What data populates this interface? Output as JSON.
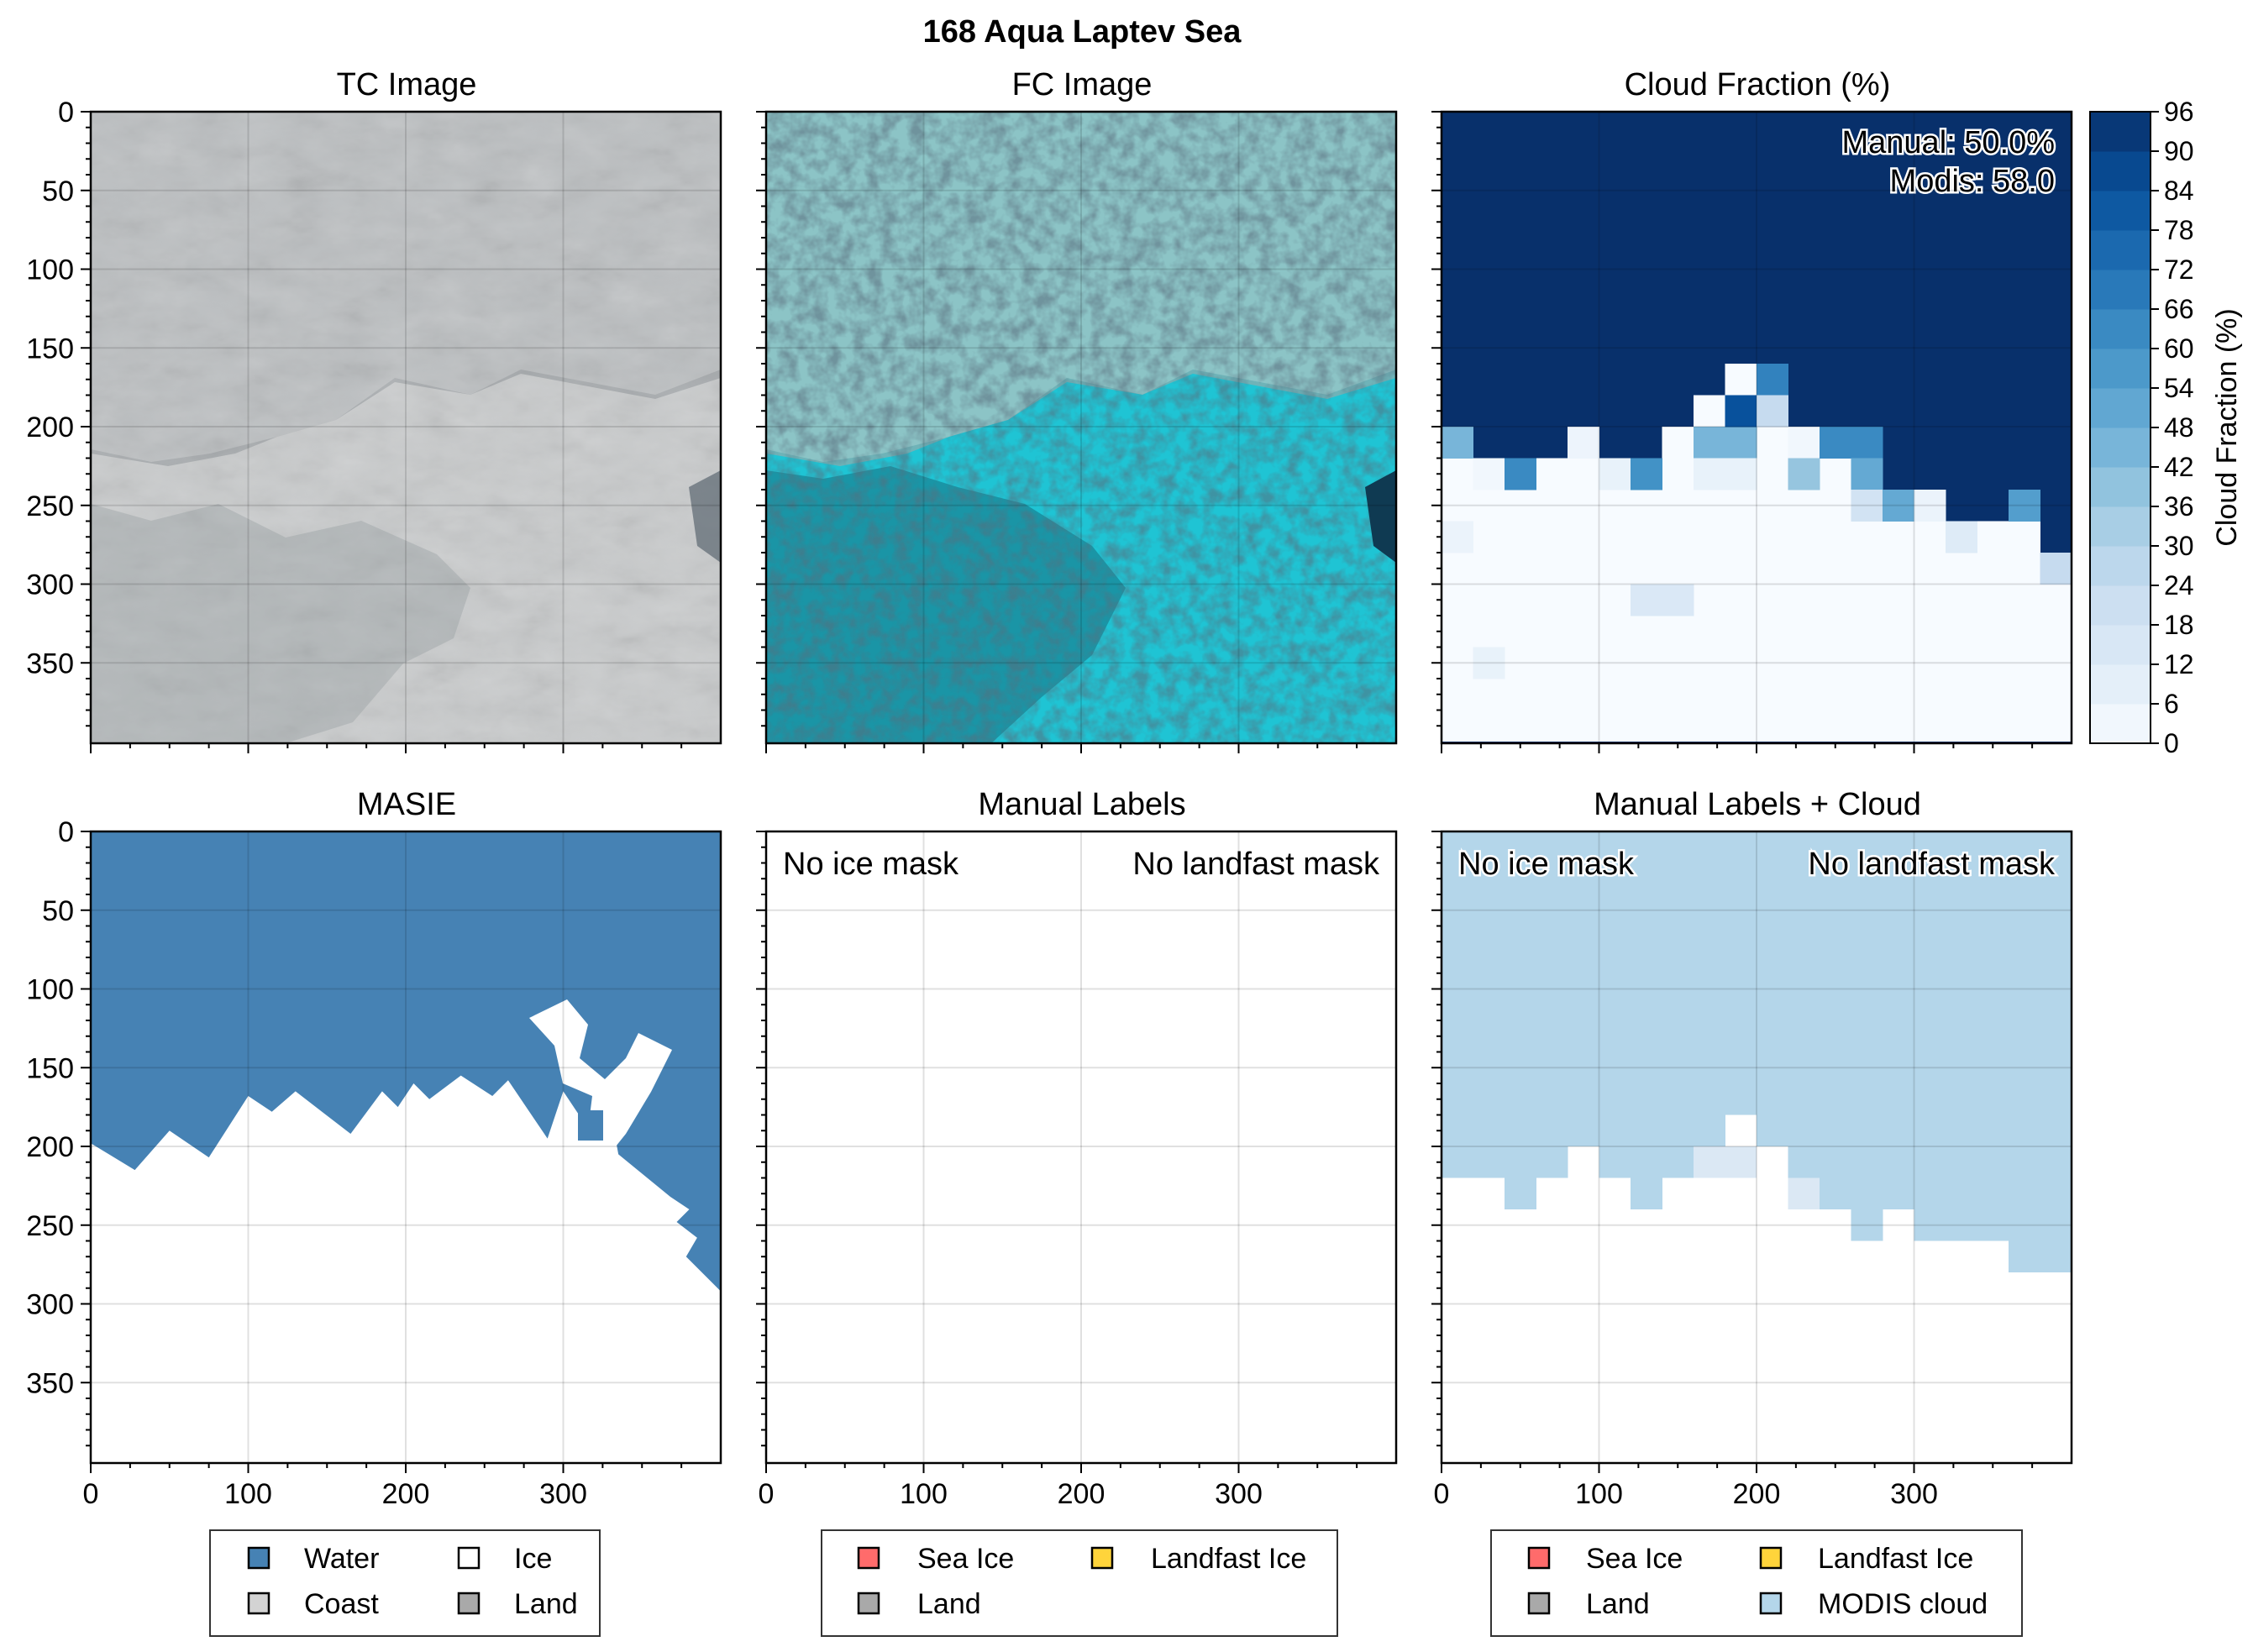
{
  "suptitle": "168 Aqua Laptev Sea",
  "colors": {
    "water": "#4682b4",
    "ice": "#ffffff",
    "coast": "#d3d3d3",
    "land": "#a9a9a9",
    "sea_ice": "#ff6b6b",
    "landfast_ice": "#ffd43b",
    "modis_cloud": "#b4d6ea"
  },
  "panels": {
    "tc": {
      "title": "TC Image"
    },
    "fc": {
      "title": "FC Image"
    },
    "cf": {
      "title": "Cloud Fraction (%)",
      "manual": "Manual: 50.0%",
      "modis": "Modis: 58.0"
    },
    "masie": {
      "title": "MASIE"
    },
    "ml": {
      "title": "Manual Labels",
      "note_left": "No ice mask",
      "note_right": "No landfast mask"
    },
    "mlc": {
      "title": "Manual Labels + Cloud",
      "note_left": "No ice mask",
      "note_right": "No landfast mask"
    }
  },
  "legends": {
    "masie": [
      "Water",
      "Ice",
      "Coast",
      "Land"
    ],
    "ml": [
      "Sea Ice",
      "Landfast Ice",
      "Land"
    ],
    "mlc": [
      "Sea Ice",
      "Landfast Ice",
      "Land",
      "MODIS cloud"
    ]
  },
  "chart_data": [
    {
      "type": "heatmap",
      "title": "TC Image",
      "xlim": [
        0,
        400
      ],
      "ylim": [
        400,
        0
      ],
      "yticks": [
        0,
        50,
        100,
        150,
        200,
        250,
        300,
        350
      ]
    },
    {
      "type": "heatmap",
      "title": "FC Image",
      "xlim": [
        0,
        400
      ],
      "ylim": [
        400,
        0
      ]
    },
    {
      "type": "heatmap",
      "title": "Cloud Fraction (%)",
      "xlim": [
        0,
        400
      ],
      "ylim": [
        400,
        0
      ],
      "grid_cell": 20,
      "colorbar": {
        "label": "Cloud Fraction (%)",
        "range": [
          0,
          96
        ],
        "ticks": [
          0,
          6,
          12,
          18,
          24,
          30,
          36,
          42,
          48,
          54,
          60,
          66,
          72,
          78,
          84,
          90,
          96
        ]
      },
      "column_cloud_boundary_y": [
        200,
        220,
        220,
        220,
        200,
        220,
        220,
        200,
        180,
        160,
        180,
        200,
        200,
        220,
        240,
        240,
        260,
        260,
        260,
        280
      ],
      "partial_cells": [
        {
          "x": 0,
          "y": 200,
          "value": 45
        },
        {
          "x": 20,
          "y": 220,
          "value": 3
        },
        {
          "x": 40,
          "y": 220,
          "value": 63
        },
        {
          "x": 80,
          "y": 200,
          "value": 5
        },
        {
          "x": 100,
          "y": 220,
          "value": 7
        },
        {
          "x": 120,
          "y": 220,
          "value": 60
        },
        {
          "x": 160,
          "y": 200,
          "value": 45
        },
        {
          "x": 160,
          "y": 220,
          "value": 7
        },
        {
          "x": 180,
          "y": 200,
          "value": 45
        },
        {
          "x": 180,
          "y": 220,
          "value": 7
        },
        {
          "x": 180,
          "y": 180,
          "value": 84
        },
        {
          "x": 200,
          "y": 160,
          "value": 66
        },
        {
          "x": 200,
          "y": 180,
          "value": 24
        },
        {
          "x": 220,
          "y": 200,
          "value": 3
        },
        {
          "x": 220,
          "y": 220,
          "value": 38
        },
        {
          "x": 240,
          "y": 200,
          "value": 63
        },
        {
          "x": 260,
          "y": 200,
          "value": 63
        },
        {
          "x": 260,
          "y": 220,
          "value": 50
        },
        {
          "x": 260,
          "y": 240,
          "value": 18
        },
        {
          "x": 280,
          "y": 240,
          "value": 50
        },
        {
          "x": 300,
          "y": 240,
          "value": 6
        },
        {
          "x": 320,
          "y": 260,
          "value": 12
        },
        {
          "x": 360,
          "y": 240,
          "value": 55
        },
        {
          "x": 380,
          "y": 280,
          "value": 24
        },
        {
          "x": 0,
          "y": 260,
          "value": 6
        },
        {
          "x": 120,
          "y": 300,
          "value": 14
        },
        {
          "x": 140,
          "y": 300,
          "value": 14
        },
        {
          "x": 20,
          "y": 340,
          "value": 7
        }
      ]
    },
    {
      "type": "heatmap",
      "title": "MASIE",
      "xlim": [
        0,
        400
      ],
      "ylim": [
        400,
        0
      ],
      "xticks": [
        0,
        100,
        200,
        300
      ],
      "water_boundary": [
        [
          0,
          198
        ],
        [
          28,
          215
        ],
        [
          50,
          190
        ],
        [
          75,
          207
        ],
        [
          100,
          168
        ],
        [
          115,
          178
        ],
        [
          130,
          165
        ],
        [
          165,
          192
        ],
        [
          185,
          165
        ],
        [
          195,
          175
        ],
        [
          205,
          160
        ],
        [
          215,
          170
        ],
        [
          235,
          155
        ],
        [
          255,
          168
        ],
        [
          265,
          158
        ],
        [
          290,
          195
        ],
        [
          300,
          165
        ],
        [
          320,
          195
        ],
        [
          330,
          178
        ],
        [
          365,
          210
        ],
        [
          380,
          150
        ],
        [
          400,
          130
        ]
      ],
      "categories": [
        "Water",
        "Ice"
      ]
    },
    {
      "type": "heatmap",
      "title": "Manual Labels",
      "xlim": [
        0,
        400
      ],
      "ylim": [
        400,
        0
      ],
      "categories": []
    },
    {
      "type": "heatmap",
      "title": "Manual Labels + Cloud",
      "xlim": [
        0,
        400
      ],
      "ylim": [
        400,
        0
      ],
      "cloud_column_bottom_y": [
        220,
        220,
        240,
        220,
        200,
        220,
        240,
        220,
        200,
        180,
        200,
        220,
        240,
        260,
        240,
        260,
        260,
        260,
        280,
        280
      ],
      "categories": [
        "MODIS cloud"
      ]
    }
  ]
}
